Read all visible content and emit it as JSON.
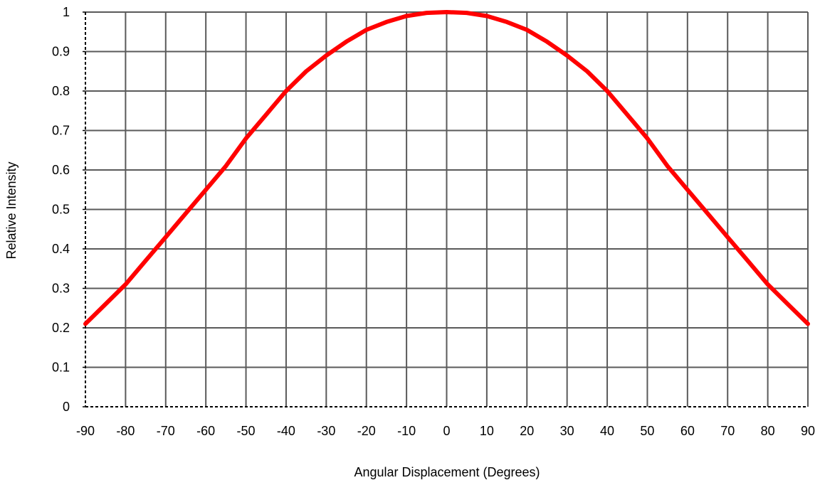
{
  "chart_data": {
    "type": "line",
    "title": "",
    "xlabel": "Angular Displacement (Degrees)",
    "ylabel": "Relative Intensity",
    "xlim": [
      -90,
      90
    ],
    "ylim": [
      0,
      1
    ],
    "x_ticks": [
      -90,
      -80,
      -70,
      -60,
      -50,
      -40,
      -30,
      -20,
      -10,
      0,
      10,
      20,
      30,
      40,
      50,
      60,
      70,
      80,
      90
    ],
    "y_ticks": [
      0,
      0.1,
      0.2,
      0.3,
      0.4,
      0.5,
      0.6,
      0.7,
      0.8,
      0.9,
      1
    ],
    "grid": true,
    "legend": "none",
    "series": [
      {
        "color": "#ff0000",
        "x": [
          -90,
          -85,
          -80,
          -75,
          -70,
          -65,
          -60,
          -55,
          -50,
          -45,
          -40,
          -35,
          -30,
          -25,
          -20,
          -15,
          -10,
          -5,
          0,
          5,
          10,
          15,
          20,
          25,
          30,
          35,
          40,
          45,
          50,
          55,
          60,
          65,
          70,
          75,
          80,
          85,
          90
        ],
        "y": [
          0.21,
          0.26,
          0.31,
          0.37,
          0.43,
          0.49,
          0.55,
          0.61,
          0.68,
          0.74,
          0.8,
          0.85,
          0.89,
          0.925,
          0.955,
          0.975,
          0.99,
          0.998,
          1.0,
          0.998,
          0.99,
          0.975,
          0.955,
          0.925,
          0.89,
          0.85,
          0.8,
          0.74,
          0.68,
          0.61,
          0.55,
          0.49,
          0.43,
          0.37,
          0.31,
          0.26,
          0.21
        ]
      }
    ]
  }
}
